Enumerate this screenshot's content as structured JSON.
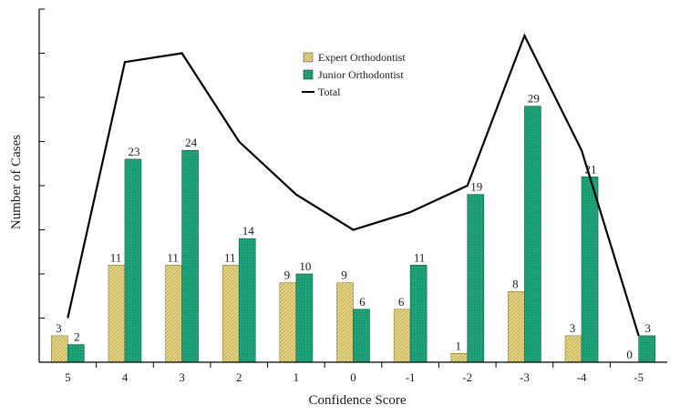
{
  "chart_data": {
    "type": "bar",
    "categories": [
      "5",
      "4",
      "3",
      "2",
      "1",
      "0",
      "-1",
      "-2",
      "-3",
      "-4",
      "-5"
    ],
    "series": [
      {
        "name": "Expert Orthodontist",
        "type": "bar",
        "values": [
          3,
          11,
          11,
          11,
          9,
          9,
          6,
          1,
          8,
          3,
          0
        ],
        "color": "#e8d98a"
      },
      {
        "name": "Junior Orthodontist",
        "type": "bar",
        "values": [
          2,
          23,
          24,
          14,
          10,
          6,
          11,
          19,
          29,
          21,
          3
        ],
        "color": "#1fa37a"
      },
      {
        "name": "Total",
        "type": "line",
        "values": [
          5,
          34,
          35,
          25,
          19,
          15,
          17,
          20,
          37,
          24,
          3
        ],
        "color": "#000000"
      }
    ],
    "title": "",
    "xlabel": "Confidence Score",
    "ylabel": "Number of Cases",
    "ylim": [
      0,
      40
    ],
    "grid": false,
    "legend_position": "top-center"
  }
}
